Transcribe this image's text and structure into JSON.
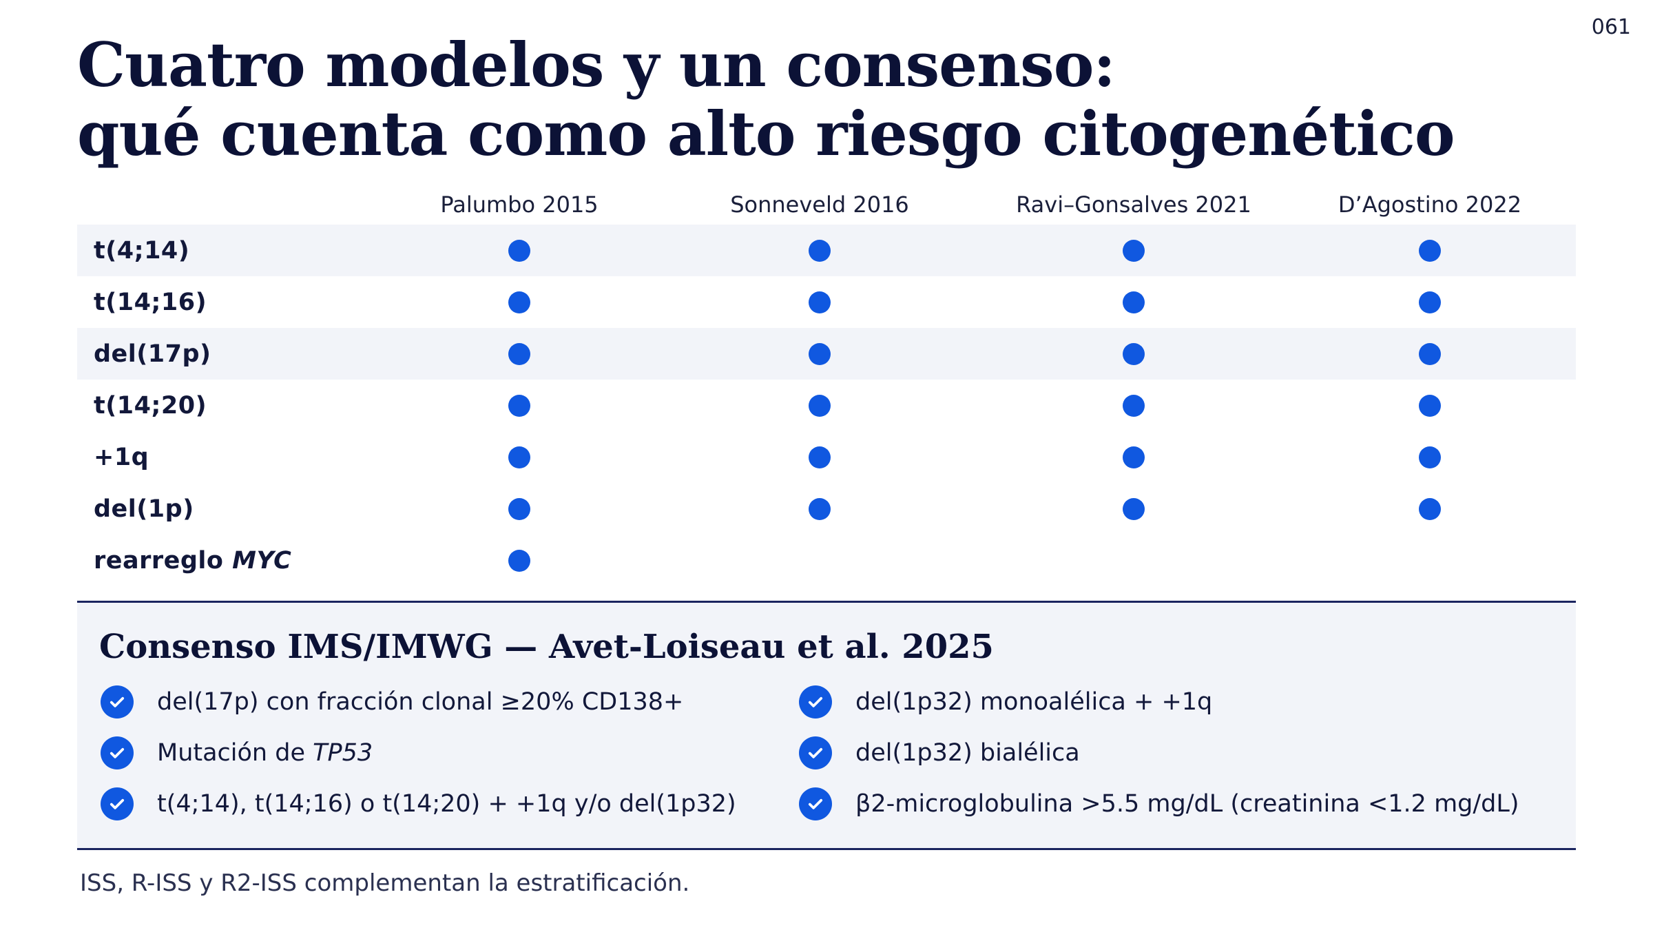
{
  "page_number": "061",
  "title": {
    "line1": "Cuatro modelos y un consenso:",
    "line2": "qué cuenta como alto riesgo citogenético"
  },
  "matrix": {
    "columns": [
      "Palumbo 2015",
      "Sonneveld 2016",
      "Ravi–Gonsalves 2021",
      "D’Agostino 2022"
    ],
    "rows": [
      {
        "label": "t(4;14)",
        "included": [
          true,
          true,
          true,
          true
        ]
      },
      {
        "label": "t(14;16)",
        "included": [
          true,
          true,
          true,
          true
        ]
      },
      {
        "label": "del(17p)",
        "included": [
          true,
          true,
          true,
          true
        ]
      },
      {
        "label": "t(14;20)",
        "included": [
          true,
          true,
          true,
          true
        ]
      },
      {
        "label": "+1q",
        "included": [
          true,
          true,
          true,
          true
        ]
      },
      {
        "label": "del(1p)",
        "included": [
          true,
          true,
          true,
          true
        ]
      },
      {
        "label_prefix": "rearreglo ",
        "label_italic": "MYC",
        "included": [
          true,
          false,
          false,
          false
        ]
      }
    ],
    "dot_color": "#1058e0"
  },
  "consensus": {
    "title": "Consenso IMS/IMWG — Avet-Loiseau et al. 2025",
    "criteria_left": [
      {
        "text": "del(17p) con fracción clonal ≥20% CD138+"
      },
      {
        "prefix": "Mutación de ",
        "italic": "TP53"
      },
      {
        "text": "t(4;14), t(14;16) o t(14;20) + +1q y/o del(1p32)"
      }
    ],
    "criteria_right": [
      {
        "text": "del(1p32) monoalélica + +1q"
      },
      {
        "text": "del(1p32) bialélica"
      },
      {
        "text": "β2-microglobulina >5.5 mg/dL (creatinina <1.2 mg/dL)"
      }
    ],
    "check_icon": "check-circle-icon",
    "accent_color": "#1058e0"
  },
  "footnote": "ISS, R-ISS y R2-ISS complementan la estratificación."
}
